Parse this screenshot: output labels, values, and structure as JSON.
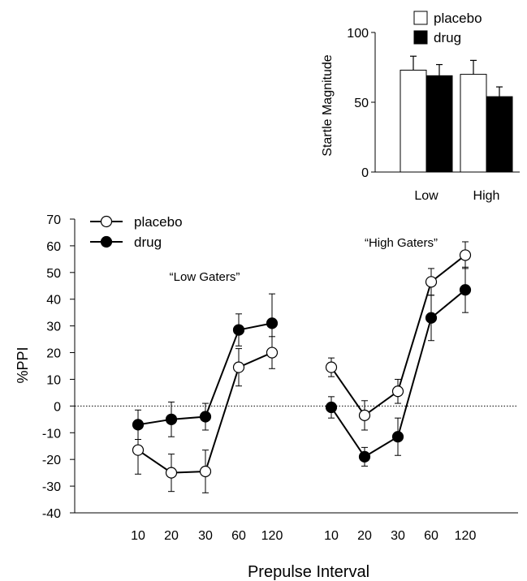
{
  "chart_data": [
    {
      "type": "bar",
      "ylabel": "Startle Magnitude",
      "ylim": [
        0,
        100
      ],
      "yticks": [
        0,
        50,
        100
      ],
      "categories": [
        "Low",
        "High"
      ],
      "legend": {
        "placement": "top",
        "entries": [
          "placebo",
          "drug"
        ]
      },
      "series": [
        {
          "name": "placebo",
          "fill": "#ffffff",
          "values": [
            73,
            70
          ],
          "errors": [
            10,
            10
          ]
        },
        {
          "name": "drug",
          "fill": "#000000",
          "values": [
            69,
            54
          ],
          "errors": [
            8,
            7
          ]
        }
      ]
    },
    {
      "type": "line",
      "xlabel": "Prepulse Interval",
      "ylabel": "%PPI",
      "ylim": [
        -40,
        70
      ],
      "yticks": [
        -40,
        -30,
        -20,
        -10,
        0,
        10,
        20,
        30,
        40,
        50,
        60,
        70
      ],
      "reference_line": 0,
      "legend": {
        "placement": "top-left",
        "entries": [
          "placebo",
          "drug"
        ]
      },
      "groups": [
        {
          "label": "“Low Gaters”",
          "x": [
            "10",
            "20",
            "30",
            "60",
            "120"
          ],
          "series": [
            {
              "name": "placebo",
              "marker": "open-circle",
              "values": [
                -16.5,
                -25,
                -24.5,
                14.5,
                20
              ],
              "errors": [
                9,
                7,
                8,
                7,
                6
              ]
            },
            {
              "name": "drug",
              "marker": "filled-circle",
              "values": [
                -7,
                -5,
                -4,
                28.5,
                31
              ],
              "errors": [
                5.5,
                6.5,
                5,
                6,
                11
              ]
            }
          ]
        },
        {
          "label": "“High Gaters”",
          "x": [
            "10",
            "20",
            "30",
            "60",
            "120"
          ],
          "series": [
            {
              "name": "placebo",
              "marker": "open-circle",
              "values": [
                14.5,
                -3.5,
                5.5,
                46.5,
                56.5
              ],
              "errors": [
                3.5,
                5.5,
                4.5,
                5,
                5
              ]
            },
            {
              "name": "drug",
              "marker": "filled-circle",
              "values": [
                -0.5,
                -19,
                -11.5,
                33,
                43.5
              ],
              "errors": [
                4,
                3.5,
                7,
                8.5,
                8.5
              ]
            }
          ]
        }
      ]
    }
  ]
}
